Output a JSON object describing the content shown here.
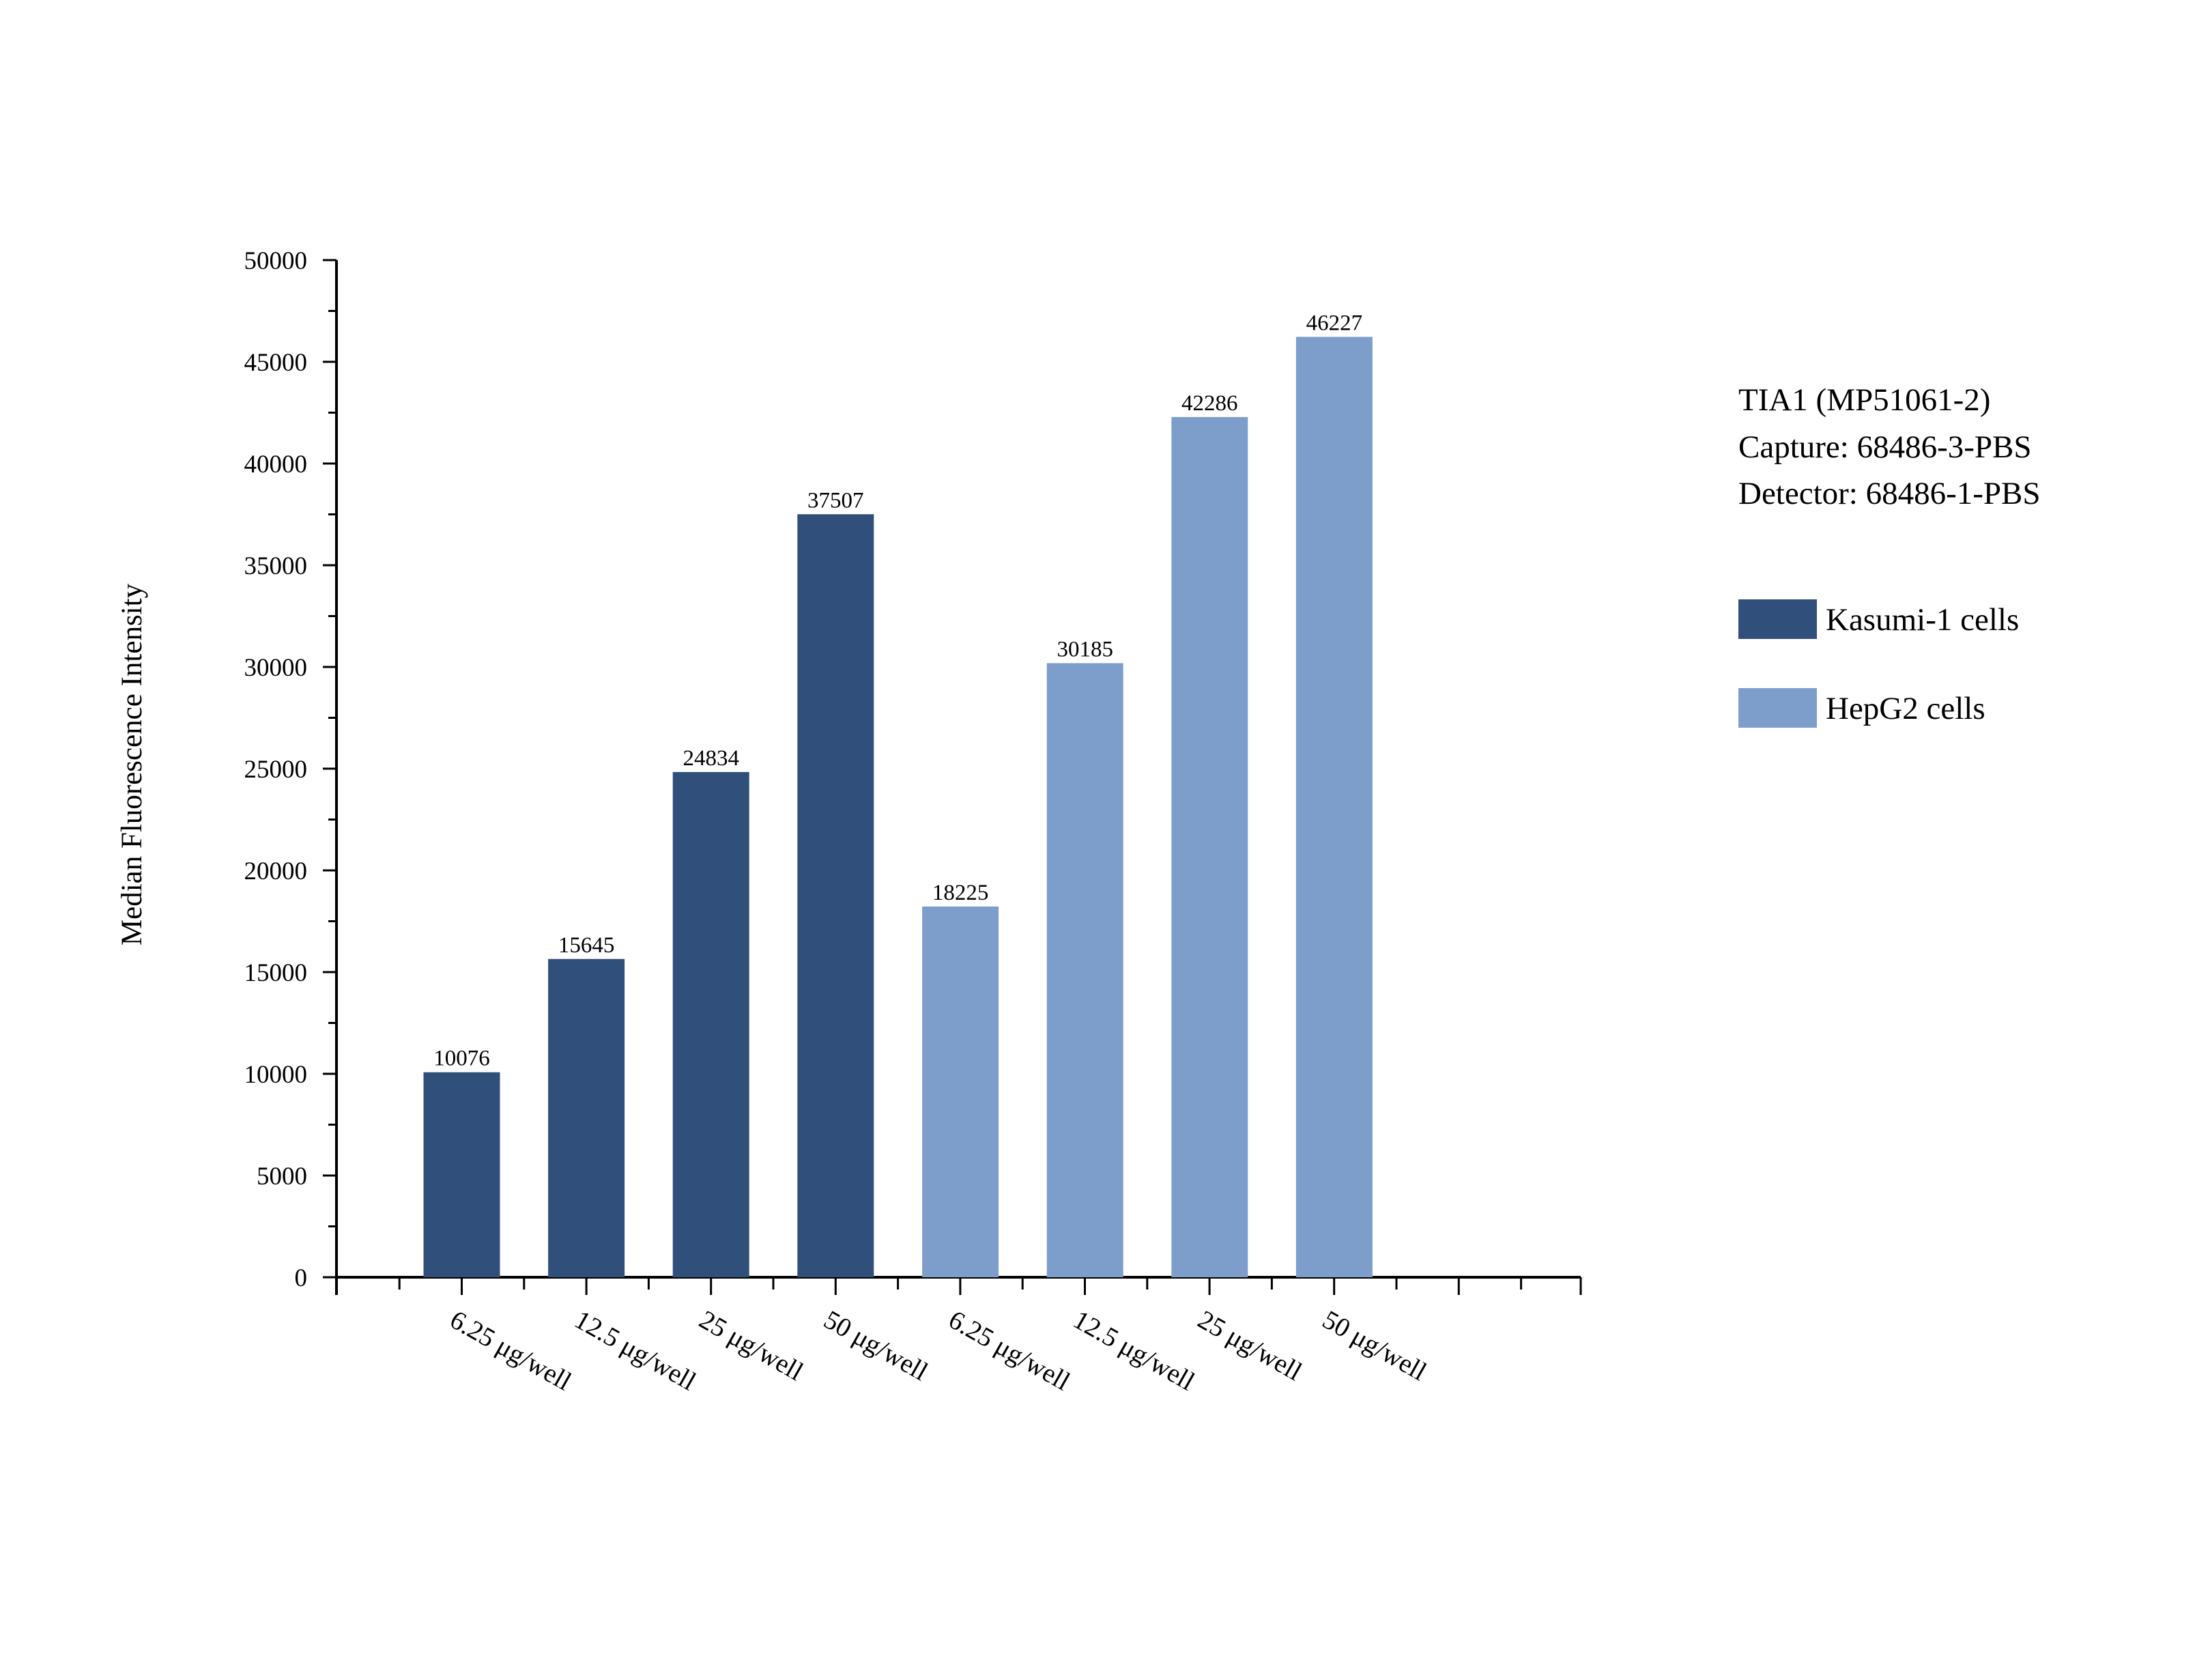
{
  "chart_data": {
    "type": "bar",
    "ylabel": "Median Fluorescence Intensity",
    "ylim": [
      0,
      50000
    ],
    "ytick_step": 5000,
    "yticks": [
      "0",
      "5000",
      "10000",
      "15000",
      "20000",
      "25000",
      "30000",
      "35000",
      "40000",
      "45000",
      "50000"
    ],
    "grid": false,
    "legend_position": "right",
    "info_lines": [
      "TIA1 (MP51061-2)",
      "Capture: 68486-3-PBS",
      "Detector: 68486-1-PBS"
    ],
    "series": [
      {
        "name": "Kasumi-1 cells",
        "color": "#314f7b",
        "categories": [
          "6.25 μg/well",
          "12.5 μg/well",
          "25 μg/well",
          "50 μg/well"
        ],
        "values": [
          10076,
          15645,
          24834,
          37507
        ]
      },
      {
        "name": "HepG2 cells",
        "color": "#7d9dcb",
        "categories": [
          "6.25 μg/well",
          "12.5 μg/well",
          "25 μg/well",
          "50 μg/well"
        ],
        "values": [
          18225,
          30185,
          42286,
          46227
        ]
      }
    ]
  }
}
